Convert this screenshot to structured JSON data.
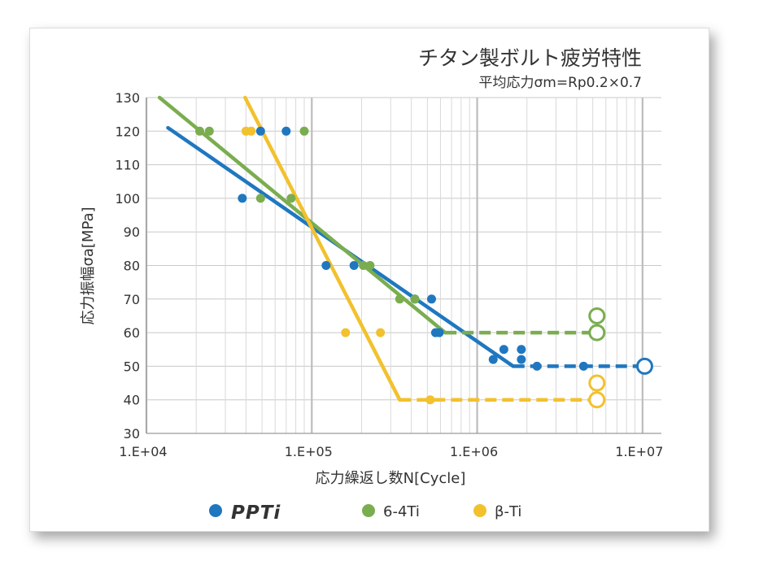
{
  "chart_data": {
    "type": "scatter",
    "title": "チタン製ボルト疲労特性",
    "subtitle": "平均応力σm=Rp0.2×0.7",
    "xlabel": "応力繰返し数N[Cycle]",
    "ylabel": "応力振幅σa[MPa]",
    "x_scale": "log",
    "xlim": [
      10000,
      13000000
    ],
    "ylim": [
      30,
      130
    ],
    "x_ticks": [
      "1.E+04",
      "1.E+05",
      "1.E+06",
      "1.E+07"
    ],
    "y_ticks": [
      "30",
      "40",
      "50",
      "60",
      "70",
      "80",
      "90",
      "100",
      "110",
      "120",
      "130"
    ],
    "grid": true,
    "legend_position": "bottom",
    "series": [
      {
        "name": "PPTi",
        "color": "#1f77c0",
        "points": [
          [
            38000,
            100
          ],
          [
            49000,
            120
          ],
          [
            70000,
            120
          ],
          [
            122000,
            80
          ],
          [
            180000,
            80
          ],
          [
            420000,
            70
          ],
          [
            530000,
            70
          ],
          [
            560000,
            60
          ],
          [
            590000,
            60
          ],
          [
            1250000,
            52
          ],
          [
            1450000,
            55
          ],
          [
            1850000,
            55
          ],
          [
            1850000,
            52
          ],
          [
            2300000,
            50
          ],
          [
            4400000,
            50
          ]
        ],
        "fit_line": [
          [
            13500,
            121
          ],
          [
            1650000,
            50
          ]
        ],
        "runout_line": [
          [
            1650000,
            50
          ],
          [
            10000000,
            50
          ]
        ],
        "runout_points": [
          [
            10300000,
            50
          ]
        ]
      },
      {
        "name": "6-4Ti",
        "color": "#7aad4f",
        "points": [
          [
            21000,
            120
          ],
          [
            24000,
            120
          ],
          [
            90000,
            120
          ],
          [
            49000,
            100
          ],
          [
            75000,
            100
          ],
          [
            205000,
            80
          ],
          [
            225000,
            80
          ],
          [
            340000,
            70
          ],
          [
            420000,
            70
          ],
          [
            5200000,
            60
          ]
        ],
        "fit_line": [
          [
            12000,
            130
          ],
          [
            640000,
            60
          ]
        ],
        "runout_line": [
          [
            640000,
            60
          ],
          [
            5200000,
            60
          ]
        ],
        "runout_points": [
          [
            5300000,
            60
          ],
          [
            5300000,
            65
          ]
        ]
      },
      {
        "name": "β-Ti",
        "color": "#f2c12e",
        "points": [
          [
            40000,
            120
          ],
          [
            43000,
            120
          ],
          [
            160000,
            60
          ],
          [
            260000,
            60
          ],
          [
            520000,
            40
          ]
        ],
        "fit_line": [
          [
            39500,
            130
          ],
          [
            340000,
            40
          ]
        ],
        "runout_line": [
          [
            340000,
            40
          ],
          [
            5200000,
            40
          ]
        ],
        "runout_points": [
          [
            5300000,
            40
          ],
          [
            5300000,
            45
          ]
        ]
      }
    ]
  }
}
